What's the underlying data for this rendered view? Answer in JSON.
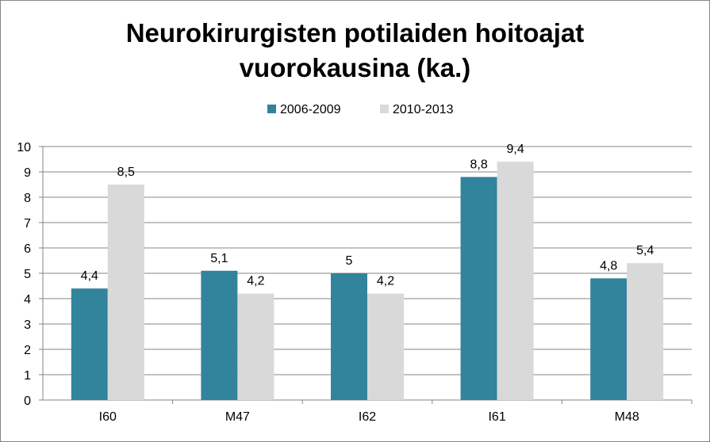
{
  "chart_data": {
    "type": "bar",
    "title_lines": [
      "Neurokirurgisten potilaiden hoitoajat",
      "vuorokausina (ka.)"
    ],
    "categories": [
      "I60",
      "M47",
      "I62",
      "I61",
      "M48"
    ],
    "series": [
      {
        "name": "2006-2009",
        "color": "#31849B",
        "values": [
          4.4,
          5.1,
          5,
          8.8,
          4.8
        ],
        "labels": [
          "4,4",
          "5,1",
          "5",
          "8,8",
          "4,8"
        ]
      },
      {
        "name": "2010-2013",
        "color": "#D9D9D9",
        "values": [
          8.5,
          4.2,
          4.2,
          9.4,
          5.4
        ],
        "labels": [
          "8,5",
          "4,2",
          "4,2",
          "9,4",
          "5,4"
        ]
      }
    ],
    "ylim": [
      0,
      10
    ],
    "yticks": [
      "0",
      "1",
      "2",
      "3",
      "4",
      "5",
      "6",
      "7",
      "8",
      "9",
      "10"
    ],
    "grid": true,
    "legend_position": "top"
  }
}
